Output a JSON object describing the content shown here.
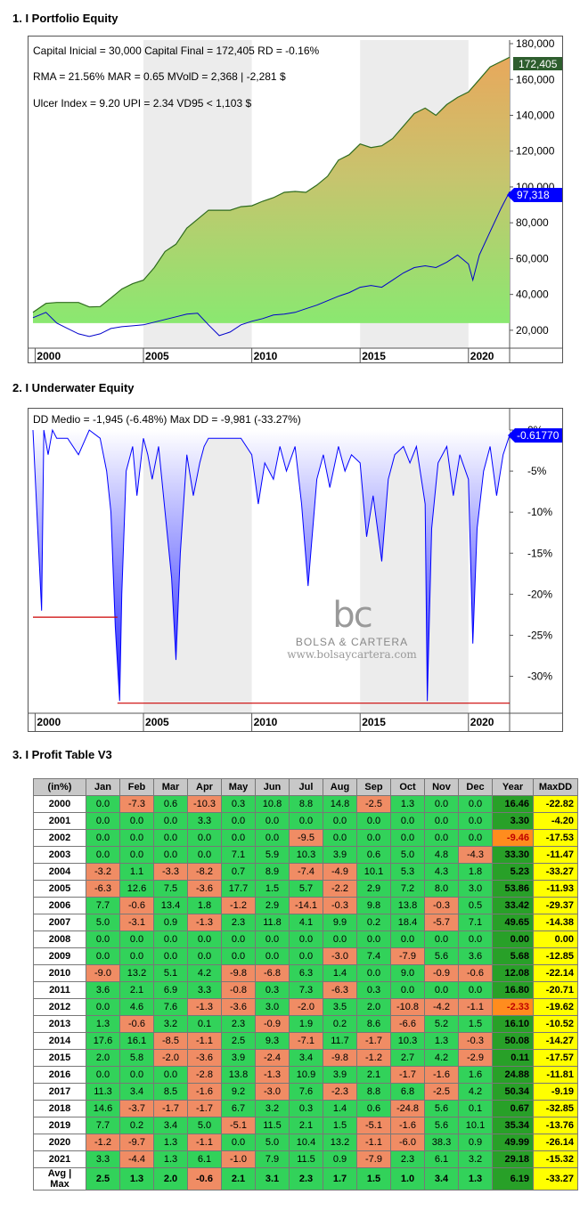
{
  "section_titles": {
    "equity": "1. I Portfolio Equity",
    "underwater": "2. I Underwater Equity",
    "profit": "3. I Profit Table V3"
  },
  "equity_info": {
    "line1": "Capital Inicial = 30,000   Capital Final = 172,405   RD = -0.16%",
    "line2": "RMA = 21.56%   MAR = 0.65   MVolD = 2,368 | -2,281 $",
    "line3": "Ulcer Index = 9.20   UPI = 2.34   VD95 < 1,103 $",
    "final_label": "172,405",
    "bench_label": "97,318"
  },
  "underwater_info": {
    "line1": "DD Medio = -1,945 (-6.48%)        Max DD = -9,981 (-33.27%)",
    "current_label": "-0.61770"
  },
  "watermark": {
    "logo": "bc",
    "name": "BOLSA & CARTERA",
    "url": "www.bolsaycartera.com"
  },
  "colors": {
    "equity_fill_top": "#e8a85c",
    "equity_fill_bottom": "#8ae870",
    "equity_line": "#2e6b1e",
    "bench_line": "#0000cc",
    "dd_line": "#0000ff",
    "maxdd_line": "#cc0000",
    "label_green": "#2e5e2e",
    "label_blue": "#0000ff"
  },
  "chart_data": [
    {
      "type": "area",
      "title": "1. I Portfolio Equity",
      "x_ticks": [
        "2000",
        "2005",
        "2010",
        "2015",
        "2020"
      ],
      "y_ticks": [
        "20,000",
        "40,000",
        "60,000",
        "80,000",
        "100,000",
        "120,000",
        "140,000",
        "160,000",
        "180,000"
      ],
      "ylim": [
        10000,
        182000
      ],
      "xlim": [
        1999.9,
        2021.9
      ],
      "series": [
        {
          "name": "Equity",
          "x": [
            1999.9,
            2000.5,
            2001.0,
            2001.5,
            2002.0,
            2002.5,
            2003.0,
            2003.5,
            2004.0,
            2004.5,
            2005.0,
            2005.5,
            2006.0,
            2006.5,
            2007.0,
            2007.5,
            2008.0,
            2008.5,
            2009.0,
            2009.5,
            2010.0,
            2010.5,
            2011.0,
            2011.5,
            2012.0,
            2012.5,
            2013.0,
            2013.5,
            2014.0,
            2014.5,
            2015.0,
            2015.5,
            2016.0,
            2016.5,
            2017.0,
            2017.5,
            2018.0,
            2018.5,
            2019.0,
            2019.5,
            2020.0,
            2020.5,
            2021.0,
            2021.5,
            2021.9
          ],
          "y": [
            30000,
            35000,
            35500,
            35500,
            35500,
            33000,
            33200,
            38000,
            43000,
            46000,
            48000,
            55000,
            64000,
            68000,
            77000,
            82000,
            87000,
            87000,
            87000,
            89000,
            89500,
            92000,
            94000,
            97000,
            97500,
            97000,
            101000,
            106000,
            115000,
            118000,
            124000,
            122000,
            123000,
            127000,
            134000,
            141000,
            144000,
            140000,
            146000,
            150000,
            153000,
            160000,
            167000,
            170000,
            172405
          ]
        },
        {
          "name": "Benchmark",
          "x": [
            1999.9,
            2000.5,
            2001.0,
            2001.5,
            2002.0,
            2002.5,
            2003.0,
            2003.5,
            2004.0,
            2004.5,
            2005.0,
            2005.5,
            2006.0,
            2006.5,
            2007.0,
            2007.5,
            2008.0,
            2008.5,
            2009.0,
            2009.5,
            2010.0,
            2010.5,
            2011.0,
            2011.5,
            2012.0,
            2012.5,
            2013.0,
            2013.5,
            2014.0,
            2014.5,
            2015.0,
            2015.5,
            2016.0,
            2016.5,
            2017.0,
            2017.5,
            2018.0,
            2018.5,
            2019.0,
            2019.5,
            2020.0,
            2020.2,
            2020.5,
            2021.0,
            2021.5,
            2021.9
          ],
          "y": [
            27000,
            30000,
            24000,
            21000,
            18000,
            16500,
            18000,
            21000,
            22000,
            22500,
            23000,
            24500,
            26000,
            27500,
            29000,
            29500,
            23000,
            17000,
            19000,
            23000,
            25000,
            26500,
            28500,
            29000,
            30000,
            32000,
            34000,
            36500,
            39000,
            41000,
            44000,
            45000,
            44000,
            48000,
            52000,
            55000,
            56000,
            55000,
            58000,
            62000,
            57000,
            48000,
            62000,
            75000,
            88000,
            97318
          ]
        }
      ]
    },
    {
      "type": "area",
      "title": "2. I Underwater Equity",
      "x_ticks": [
        "2000",
        "2005",
        "2010",
        "2015",
        "2020"
      ],
      "y_ticks": [
        "0%",
        "-5%",
        "-10%",
        "-15%",
        "-20%",
        "-25%",
        "-30%"
      ],
      "ylim": [
        -34.5,
        0
      ],
      "xlim": [
        1999.9,
        2021.9
      ],
      "series": [
        {
          "name": "Drawdown",
          "x": [
            1999.9,
            2000.3,
            2000.4,
            2000.6,
            2000.8,
            2001.0,
            2001.5,
            2002.0,
            2002.5,
            2003.0,
            2003.3,
            2003.5,
            2003.7,
            2003.9,
            2004.0,
            2004.2,
            2004.5,
            2004.7,
            2005.0,
            2005.2,
            2005.4,
            2005.7,
            2006.0,
            2006.3,
            2006.5,
            2006.7,
            2007.0,
            2007.3,
            2007.6,
            2007.8,
            2008.0,
            2008.5,
            2009.0,
            2009.5,
            2010.0,
            2010.3,
            2010.6,
            2011.0,
            2011.3,
            2011.6,
            2012.0,
            2012.3,
            2012.6,
            2013.0,
            2013.3,
            2013.6,
            2014.0,
            2014.3,
            2014.6,
            2015.0,
            2015.3,
            2015.6,
            2016.0,
            2016.3,
            2016.6,
            2017.0,
            2017.3,
            2017.6,
            2018.0,
            2018.1,
            2018.3,
            2018.6,
            2019.0,
            2019.3,
            2019.6,
            2020.0,
            2020.2,
            2020.4,
            2020.7,
            2021.0,
            2021.3,
            2021.6,
            2021.9
          ],
          "y": [
            0,
            -22,
            0,
            -3,
            0,
            -1,
            -1,
            -3,
            0,
            -1,
            -5,
            -10,
            -24,
            -33,
            -20,
            -5,
            -2,
            -8,
            -1,
            -3,
            -6,
            -2,
            -10,
            -18,
            -28,
            -15,
            -3,
            -8,
            -4,
            -2,
            -1,
            -1,
            -1,
            -1,
            -3,
            -9,
            -4,
            -6,
            -2,
            -5,
            -2,
            -9,
            -19,
            -6,
            -3,
            -7,
            -2,
            -5,
            -3,
            -4,
            -13,
            -8,
            -16,
            -6,
            -3,
            -2,
            -4,
            -2,
            -9,
            -33,
            -12,
            -4,
            -2,
            -8,
            -3,
            -6,
            -26,
            -12,
            -5,
            -2,
            -8,
            -3,
            -0.6177
          ]
        }
      ],
      "max_dd_segments": [
        {
          "x": [
            1999.9,
            2003.8
          ],
          "y": -22.8
        },
        {
          "x": [
            2003.8,
            2021.9
          ],
          "y": -33.27
        }
      ]
    },
    {
      "type": "table",
      "title": "3. I Profit Table V3",
      "columns": [
        "(in%)",
        "Jan",
        "Feb",
        "Mar",
        "Apr",
        "May",
        "Jun",
        "Jul",
        "Aug",
        "Sep",
        "Oct",
        "Nov",
        "Dec",
        "Year",
        "MaxDD"
      ],
      "rows": [
        [
          "2000",
          "0.0",
          "-7.3",
          "0.6",
          "-10.3",
          "0.3",
          "10.8",
          "8.8",
          "14.8",
          "-2.5",
          "1.3",
          "0.0",
          "0.0",
          "16.46",
          "-22.82"
        ],
        [
          "2001",
          "0.0",
          "0.0",
          "0.0",
          "3.3",
          "0.0",
          "0.0",
          "0.0",
          "0.0",
          "0.0",
          "0.0",
          "0.0",
          "0.0",
          "3.30",
          "-4.20"
        ],
        [
          "2002",
          "0.0",
          "0.0",
          "0.0",
          "0.0",
          "0.0",
          "0.0",
          "-9.5",
          "0.0",
          "0.0",
          "0.0",
          "0.0",
          "0.0",
          "-9.46",
          "-17.53"
        ],
        [
          "2003",
          "0.0",
          "0.0",
          "0.0",
          "0.0",
          "7.1",
          "5.9",
          "10.3",
          "3.9",
          "0.6",
          "5.0",
          "4.8",
          "-4.3",
          "33.30",
          "-11.47"
        ],
        [
          "2004",
          "-3.2",
          "1.1",
          "-3.3",
          "-8.2",
          "0.7",
          "8.9",
          "-7.4",
          "-4.9",
          "10.1",
          "5.3",
          "4.3",
          "1.8",
          "5.23",
          "-33.27"
        ],
        [
          "2005",
          "-6.3",
          "12.6",
          "7.5",
          "-3.6",
          "17.7",
          "1.5",
          "5.7",
          "-2.2",
          "2.9",
          "7.2",
          "8.0",
          "3.0",
          "53.86",
          "-11.93"
        ],
        [
          "2006",
          "7.7",
          "-0.6",
          "13.4",
          "1.8",
          "-1.2",
          "2.9",
          "-14.1",
          "-0.3",
          "9.8",
          "13.8",
          "-0.3",
          "0.5",
          "33.42",
          "-29.37"
        ],
        [
          "2007",
          "5.0",
          "-3.1",
          "0.9",
          "-1.3",
          "2.3",
          "11.8",
          "4.1",
          "9.9",
          "0.2",
          "18.4",
          "-5.7",
          "7.1",
          "49.65",
          "-14.38"
        ],
        [
          "2008",
          "0.0",
          "0.0",
          "0.0",
          "0.0",
          "0.0",
          "0.0",
          "0.0",
          "0.0",
          "0.0",
          "0.0",
          "0.0",
          "0.0",
          "0.00",
          "0.00"
        ],
        [
          "2009",
          "0.0",
          "0.0",
          "0.0",
          "0.0",
          "0.0",
          "0.0",
          "0.0",
          "-3.0",
          "7.4",
          "-7.9",
          "5.6",
          "3.6",
          "5.68",
          "-12.85"
        ],
        [
          "2010",
          "-9.0",
          "13.2",
          "5.1",
          "4.2",
          "-9.8",
          "-6.8",
          "6.3",
          "1.4",
          "0.0",
          "9.0",
          "-0.9",
          "-0.6",
          "12.08",
          "-22.14"
        ],
        [
          "2011",
          "3.6",
          "2.1",
          "6.9",
          "3.3",
          "-0.8",
          "0.3",
          "7.3",
          "-6.3",
          "0.3",
          "0.0",
          "0.0",
          "0.0",
          "16.80",
          "-20.71"
        ],
        [
          "2012",
          "0.0",
          "4.6",
          "7.6",
          "-1.3",
          "-3.6",
          "3.0",
          "-2.0",
          "3.5",
          "2.0",
          "-10.8",
          "-4.2",
          "-1.1",
          "-2.33",
          "-19.62"
        ],
        [
          "2013",
          "1.3",
          "-0.6",
          "3.2",
          "0.1",
          "2.3",
          "-0.9",
          "1.9",
          "0.2",
          "8.6",
          "-6.6",
          "5.2",
          "1.5",
          "16.10",
          "-10.52"
        ],
        [
          "2014",
          "17.6",
          "16.1",
          "-8.5",
          "-1.1",
          "2.5",
          "9.3",
          "-7.1",
          "11.7",
          "-1.7",
          "10.3",
          "1.3",
          "-0.3",
          "50.08",
          "-14.27"
        ],
        [
          "2015",
          "2.0",
          "5.8",
          "-2.0",
          "-3.6",
          "3.9",
          "-2.4",
          "3.4",
          "-9.8",
          "-1.2",
          "2.7",
          "4.2",
          "-2.9",
          "0.11",
          "-17.57"
        ],
        [
          "2016",
          "0.0",
          "0.0",
          "0.0",
          "-2.8",
          "13.8",
          "-1.3",
          "10.9",
          "3.9",
          "2.1",
          "-1.7",
          "-1.6",
          "1.6",
          "24.88",
          "-11.81"
        ],
        [
          "2017",
          "11.3",
          "3.4",
          "8.5",
          "-1.6",
          "9.2",
          "-3.0",
          "7.6",
          "-2.3",
          "8.8",
          "6.8",
          "-2.5",
          "4.2",
          "50.34",
          "-9.19"
        ],
        [
          "2018",
          "14.6",
          "-3.7",
          "-1.7",
          "-1.7",
          "6.7",
          "3.2",
          "0.3",
          "1.4",
          "0.6",
          "-24.8",
          "5.6",
          "0.1",
          "0.67",
          "-32.85"
        ],
        [
          "2019",
          "7.7",
          "0.2",
          "3.4",
          "5.0",
          "-5.1",
          "11.5",
          "2.1",
          "1.5",
          "-5.1",
          "-1.6",
          "5.6",
          "10.1",
          "35.34",
          "-13.76"
        ],
        [
          "2020",
          "-1.2",
          "-9.7",
          "1.3",
          "-1.1",
          "0.0",
          "5.0",
          "10.4",
          "13.2",
          "-1.1",
          "-6.0",
          "38.3",
          "0.9",
          "49.99",
          "-26.14"
        ],
        [
          "2021",
          "3.3",
          "-4.4",
          "1.3",
          "6.1",
          "-1.0",
          "7.9",
          "11.5",
          "0.9",
          "-7.9",
          "2.3",
          "6.1",
          "3.2",
          "29.18",
          "-15.32"
        ]
      ],
      "footer": [
        "Avg | Max",
        "2.5",
        "1.3",
        "2.0",
        "-0.6",
        "2.1",
        "3.1",
        "2.3",
        "1.7",
        "1.5",
        "1.0",
        "3.4",
        "1.3",
        "6.19",
        "-33.27"
      ]
    }
  ]
}
